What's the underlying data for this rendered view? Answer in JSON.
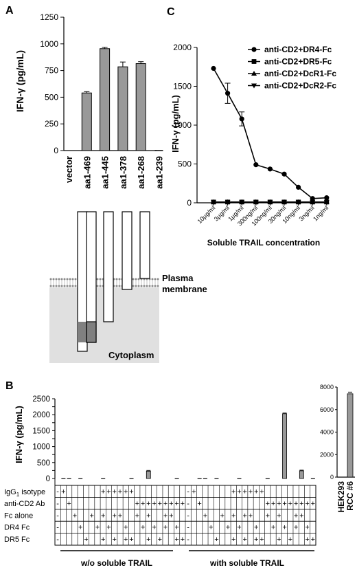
{
  "panels": {
    "A": "A",
    "B": "B",
    "C": "C"
  },
  "colors": {
    "bar": "#999999",
    "axis": "#000000",
    "membrane_fill": "#e0e0e0",
    "cyto_dark": "#808080"
  },
  "chart_data": [
    {
      "id": "A",
      "type": "bar",
      "ylabel": "IFN-γ (pg/mL)",
      "ylim": [
        0,
        1250
      ],
      "yticks": [
        0,
        250,
        500,
        750,
        1000,
        1250
      ],
      "categories": [
        "vector",
        "aa1-469",
        "aa1-445",
        "aa1-378",
        "aa1-268",
        "aa1-239"
      ],
      "values": [
        0,
        540,
        955,
        785,
        815,
        0
      ],
      "errors": [
        0,
        12,
        12,
        45,
        18,
        0
      ],
      "grid": false
    },
    {
      "id": "C",
      "type": "line",
      "ylabel": "IFN-γ (pg/mL)",
      "xlabel": "Soluble TRAIL concentration",
      "ylim": [
        0,
        2000
      ],
      "yticks": [
        0,
        500,
        1000,
        1500,
        2000
      ],
      "categories": [
        "10µg/ml",
        "3µg/ml",
        "1µg/ml",
        "300ng/ml",
        "100ng/ml",
        "30ng/ml",
        "10ng/ml",
        "3ng/ml",
        "1ng/ml"
      ],
      "series": [
        {
          "name": "anti-CD2+DR4-Fc",
          "marker": "circle",
          "values": [
            1730,
            1410,
            1080,
            490,
            435,
            370,
            200,
            55,
            65
          ],
          "errors": [
            0,
            130,
            90,
            0,
            0,
            0,
            0,
            0,
            0
          ]
        },
        {
          "name": "anti-CD2+DR5-Fc",
          "marker": "square",
          "values": [
            10,
            10,
            10,
            10,
            10,
            10,
            10,
            10,
            10
          ]
        },
        {
          "name": "anti-CD2+DcR1-Fc",
          "marker": "triangle-up",
          "values": [
            10,
            10,
            10,
            10,
            10,
            10,
            10,
            10,
            10
          ]
        },
        {
          "name": "anti-CD2+DcR2-Fc",
          "marker": "triangle-down",
          "values": [
            10,
            10,
            10,
            10,
            10,
            10,
            10,
            10,
            10
          ]
        }
      ],
      "legend": "top-right",
      "grid": false
    },
    {
      "id": "B",
      "type": "bar",
      "ylabel": "IFN-γ (pg/mL)",
      "ylim": [
        0,
        2500
      ],
      "yticks": [
        0,
        250,
        500,
        750,
        1000,
        1250,
        1500,
        1750,
        2000,
        2250,
        2500
      ],
      "values": [
        0,
        10,
        5,
        0,
        5,
        0,
        0,
        0,
        5,
        0,
        0,
        0,
        0,
        5,
        0,
        0,
        230,
        0,
        0,
        0,
        0,
        5,
        0,
        0,
        0,
        10,
        5,
        0,
        5,
        0,
        0,
        0,
        5,
        0,
        0,
        0,
        0,
        5,
        0,
        0,
        2030,
        0,
        0,
        240,
        0,
        10
      ],
      "groups": [
        "w/o soluble TRAIL",
        "with soluble TRAIL"
      ],
      "rows": [
        {
          "label": "IgG",
          "subscript": "1",
          "suffix": " isotype",
          "cells": [
            "-",
            "+",
            "",
            "",
            "",
            "",
            "",
            "",
            "+",
            "+",
            "+",
            "+",
            "+",
            "+",
            "",
            "",
            "",
            "",
            "",
            "",
            "",
            "",
            "",
            "-",
            "+",
            "",
            "",
            "",
            "",
            "",
            "",
            "+",
            "+",
            "+",
            "+",
            "+",
            "+",
            "",
            "",
            "",
            "",
            "",
            "",
            "",
            "",
            ""
          ]
        },
        {
          "label": "anti-CD2 Ab",
          "cells": [
            "-",
            "",
            "+",
            "",
            "",
            "",
            "",
            "",
            "",
            "",
            "",
            "",
            "",
            "",
            "+",
            "+",
            "+",
            "+",
            "+",
            "+",
            "+",
            "+",
            "+",
            "-",
            "",
            "+",
            "",
            "",
            "",
            "",
            "",
            "",
            "",
            "",
            "",
            "",
            "",
            "+",
            "+",
            "+",
            "+",
            "+",
            "+",
            "+",
            "+",
            "+"
          ]
        },
        {
          "label": "Fc alone",
          "cells": [
            "-",
            "",
            "",
            "+",
            "",
            "",
            "+",
            "",
            "+",
            "",
            "+",
            "+",
            "",
            "",
            "+",
            "",
            "+",
            "",
            "",
            "+",
            "+",
            "",
            "",
            "-",
            "",
            "",
            "+",
            "",
            "",
            "+",
            "",
            "+",
            "",
            "+",
            "+",
            "",
            "",
            "+",
            "",
            "+",
            "",
            "",
            "+",
            "+",
            "",
            ""
          ]
        },
        {
          "label": "DR4 Fc",
          "cells": [
            "-",
            "",
            "",
            "",
            "+",
            "",
            "",
            "+",
            "",
            "+",
            "",
            "",
            "+",
            "",
            "",
            "+",
            "",
            "+",
            "",
            "+",
            "",
            "+",
            "",
            "-",
            "",
            "",
            "",
            "+",
            "",
            "",
            "+",
            "",
            "+",
            "",
            "",
            "+",
            "",
            "",
            "+",
            "",
            "+",
            "",
            "+",
            "",
            "+",
            ""
          ]
        },
        {
          "label": "DR5 Fc",
          "cells": [
            "-",
            "",
            "",
            "",
            "",
            "+",
            "",
            "",
            "+",
            "",
            "+",
            "",
            "+",
            "+",
            "",
            "",
            "+",
            "",
            "+",
            "",
            "",
            "+",
            "+",
            "-",
            "",
            "",
            "",
            "",
            "+",
            "",
            "",
            "+",
            "",
            "+",
            "",
            "+",
            "+",
            "",
            "",
            "+",
            "",
            "+",
            "",
            "",
            "+",
            "+"
          ]
        }
      ]
    },
    {
      "id": "B-inset",
      "type": "bar",
      "ylim": [
        0,
        8000
      ],
      "yticks": [
        0,
        2000,
        4000,
        6000,
        8000
      ],
      "categories": [
        "HEK293",
        "RCC #6"
      ],
      "values": [
        0,
        7400
      ],
      "errors": [
        0,
        150
      ]
    }
  ],
  "schematic": {
    "membrane_label": "Plasma membrane",
    "membrane_line1": "Plasma",
    "membrane_line2": "membrane",
    "cytoplasm_label": "Cytoplasm"
  }
}
